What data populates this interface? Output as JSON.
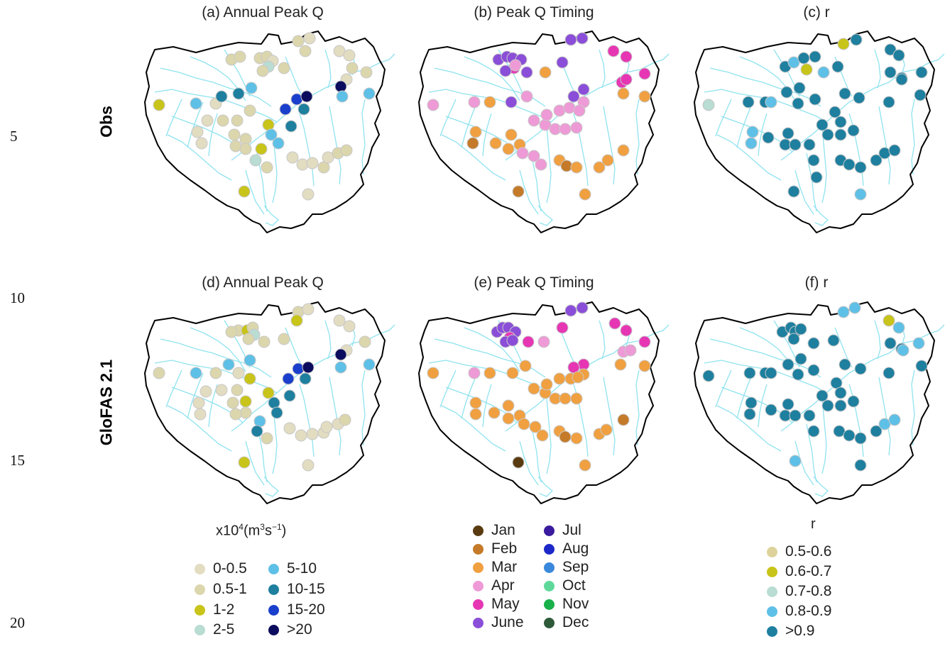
{
  "line_numbers": [
    "5",
    "10",
    "15",
    "20"
  ],
  "rows": [
    {
      "label": "Obs"
    },
    {
      "label": "GloFAS 2.1"
    }
  ],
  "panels": [
    {
      "title": "(a) Annual Peak Q",
      "type": "mag"
    },
    {
      "title": "(b) Peak Q Timing",
      "type": "time"
    },
    {
      "title": "(c) r",
      "type": "r"
    },
    {
      "title": "(d) Annual Peak Q",
      "type": "mag"
    },
    {
      "title": "(e) Peak Q Timing",
      "type": "time"
    },
    {
      "title": "(f) r",
      "type": "r"
    }
  ],
  "colors": {
    "basin_outline": "#000000",
    "rivers": "#8fe3ef",
    "marker_outline": "#c8c8c8"
  },
  "legends": {
    "magnitude": {
      "title_base": "x10",
      "title_exp": "4",
      "title_unit_open": "(m",
      "title_unit_exp1": "3",
      "title_unit_mid": "s",
      "title_unit_exp2": "−1",
      "title_unit_close": ")",
      "items": [
        {
          "label": "0-0.5",
          "color": "#e2dcc1"
        },
        {
          "label": "0.5-1",
          "color": "#dcd6ad"
        },
        {
          "label": "1-2",
          "color": "#c8c419"
        },
        {
          "label": "2-5",
          "color": "#b9dcd3"
        },
        {
          "label": "5-10",
          "color": "#5ec0e6"
        },
        {
          "label": "10-15",
          "color": "#1e7f9f"
        },
        {
          "label": "15-20",
          "color": "#1a3fcc"
        },
        {
          "label": ">20",
          "color": "#0c0c5e"
        }
      ]
    },
    "timing": {
      "items": [
        {
          "label": "Jan",
          "color": "#5a3a10"
        },
        {
          "label": "Feb",
          "color": "#c47a28"
        },
        {
          "label": "Mar",
          "color": "#f0a040"
        },
        {
          "label": "Apr",
          "color": "#ee9ad6"
        },
        {
          "label": "May",
          "color": "#e636b4"
        },
        {
          "label": "June",
          "color": "#8a4ed8"
        },
        {
          "label": "Jul",
          "color": "#3a1a9e"
        },
        {
          "label": "Aug",
          "color": "#1c28c8"
        },
        {
          "label": "Sep",
          "color": "#3a88dc"
        },
        {
          "label": "Oct",
          "color": "#5ed89a"
        },
        {
          "label": "Nov",
          "color": "#18b04a"
        },
        {
          "label": "Dec",
          "color": "#2e5a3a"
        }
      ]
    },
    "correlation": {
      "title": "r",
      "items": [
        {
          "label": "0.5-0.6",
          "color": "#ddd39a"
        },
        {
          "label": "0.6-0.7",
          "color": "#c8c419"
        },
        {
          "label": "0.7-0.8",
          "color": "#b9dcd3"
        },
        {
          "label": "0.8-0.9",
          "color": "#5ec0e6"
        },
        {
          "label": ">0.9",
          "color": "#1e7f9f"
        }
      ]
    }
  }
}
